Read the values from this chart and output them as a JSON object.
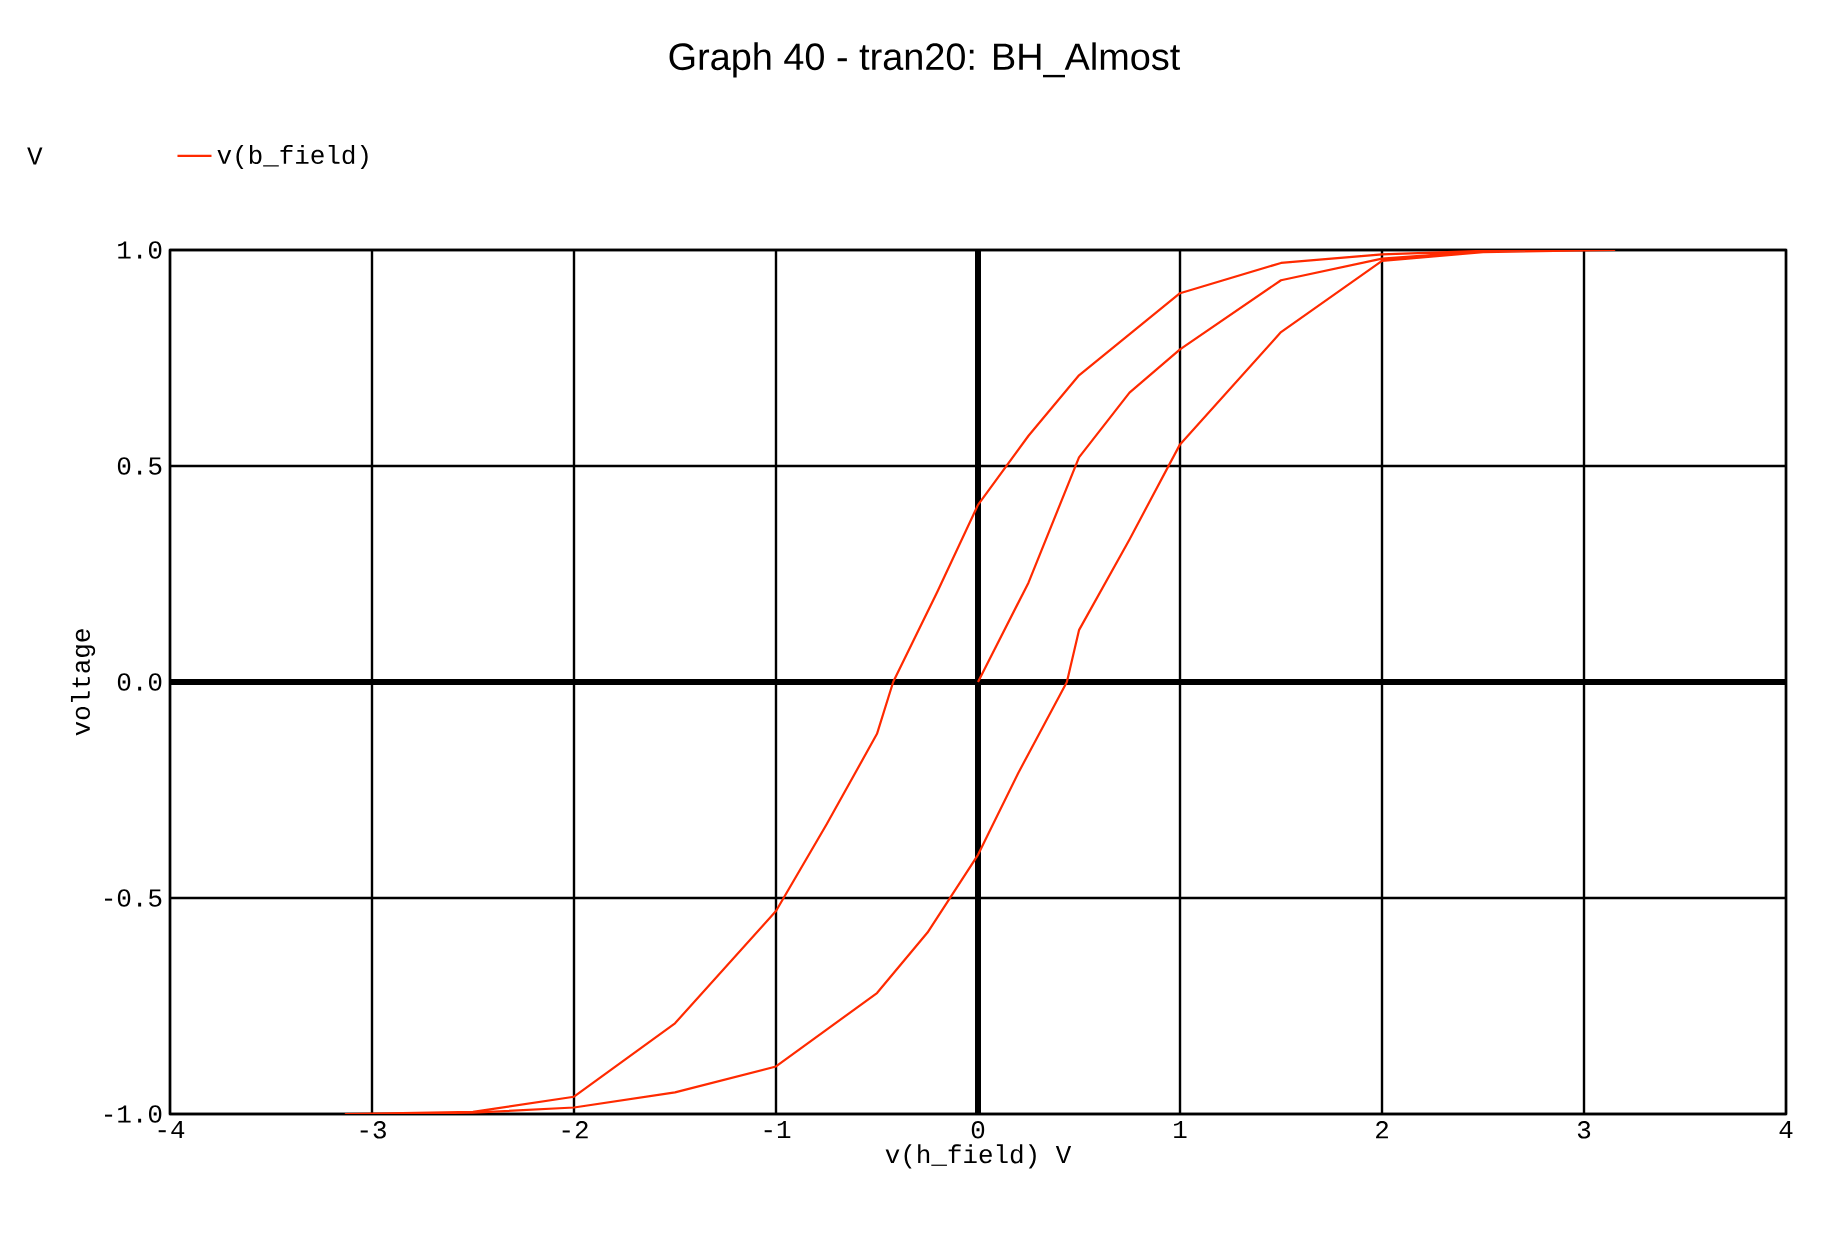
{
  "chart_data": {
    "type": "line",
    "title": "Graph 40 - tran20: BH_Almost",
    "xlabel": "v(h_field)  V",
    "ylabel": "voltage",
    "annotations": [
      "V"
    ],
    "series": [
      {
        "name": "v(b_field)",
        "color": "#ff2a00",
        "x": [
          0,
          0.25,
          0.5,
          0.75,
          1,
          1.5,
          2,
          2.5,
          3.15,
          2.5,
          2,
          1.5,
          1,
          0.5,
          0.25,
          0,
          -0.2,
          -0.42,
          -0.5,
          -0.75,
          -1,
          -1.5,
          -2,
          -2.5,
          -3.13,
          -2.5,
          -2,
          -1.5,
          -1,
          -0.5,
          -0.25,
          0,
          0.2,
          0.44,
          0.5,
          0.75,
          1,
          1.5,
          2,
          2.5,
          3.15
        ],
        "values": [
          0,
          0.23,
          0.52,
          0.67,
          0.77,
          0.93,
          0.98,
          0.997,
          1,
          0.998,
          0.99,
          0.97,
          0.9,
          0.71,
          0.57,
          0.41,
          0.21,
          0,
          -0.12,
          -0.33,
          -0.53,
          -0.79,
          -0.96,
          -0.995,
          -1,
          -0.997,
          -0.985,
          -0.95,
          -0.89,
          -0.72,
          -0.58,
          -0.4,
          -0.21,
          0,
          0.12,
          0.33,
          0.55,
          0.81,
          0.975,
          0.995,
          1
        ]
      }
    ],
    "xlim": [
      -4,
      4
    ],
    "ylim": [
      -1,
      1
    ],
    "xticks": [
      -4,
      -3,
      -2,
      -1,
      0,
      1,
      2,
      3,
      4
    ],
    "yticks": [
      {
        "value": -1,
        "label": "-1.0"
      },
      {
        "value": -0.5,
        "label": "-0.5"
      },
      {
        "value": 0,
        "label": "0.0"
      },
      {
        "value": 0.5,
        "label": "0.5"
      },
      {
        "value": 1,
        "label": "1.0"
      }
    ],
    "grid": true,
    "legend": "top left",
    "marker": "none",
    "line_style": "solid"
  }
}
